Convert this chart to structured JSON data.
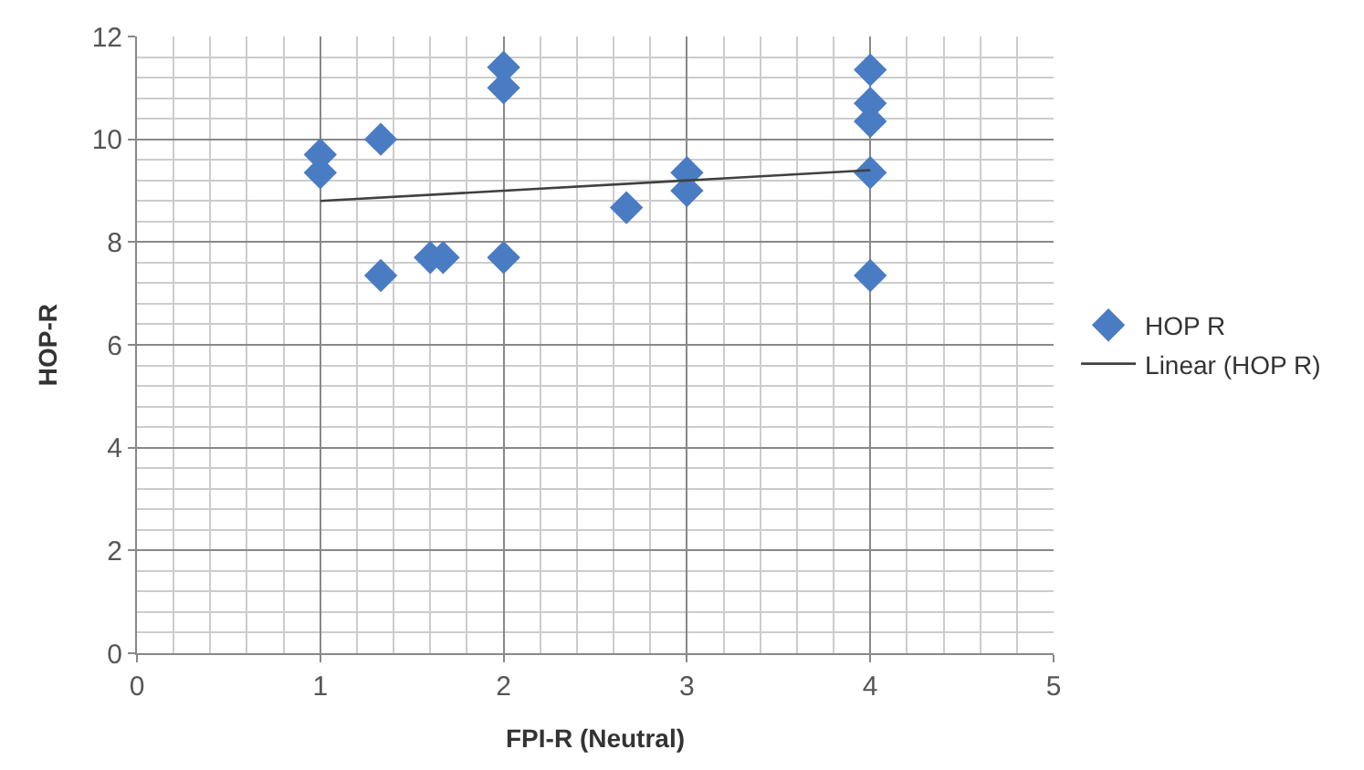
{
  "chart_data": {
    "type": "scatter",
    "xlabel": "FPI-R (Neutral)",
    "ylabel": "HOP-R",
    "series": [
      {
        "name": "HOP R",
        "color": "#4a7cc4",
        "marker": "diamond",
        "x": [
          1,
          1,
          1.33,
          1.33,
          1.6,
          1.67,
          2,
          2,
          2,
          2.67,
          3,
          3,
          4,
          4,
          4,
          4,
          4
        ],
        "values": [
          9.7,
          9.35,
          10.0,
          7.35,
          7.7,
          7.7,
          11.4,
          11.0,
          7.7,
          8.67,
          9.35,
          9.0,
          11.35,
          10.7,
          10.35,
          9.35,
          7.35
        ]
      },
      {
        "name": "Linear (HOP R)",
        "type": "line",
        "color": "#404040",
        "marker": "none",
        "line_style": "solid",
        "x": [
          1,
          4
        ],
        "values": [
          8.8,
          9.4
        ]
      }
    ],
    "xlim": [
      0,
      5
    ],
    "xticks": [
      0,
      1,
      2,
      3,
      4,
      5
    ],
    "ylim": [
      0,
      12
    ],
    "yticks": [
      0,
      2,
      4,
      6,
      8,
      10,
      12
    ],
    "grid": true,
    "legend": "right"
  }
}
